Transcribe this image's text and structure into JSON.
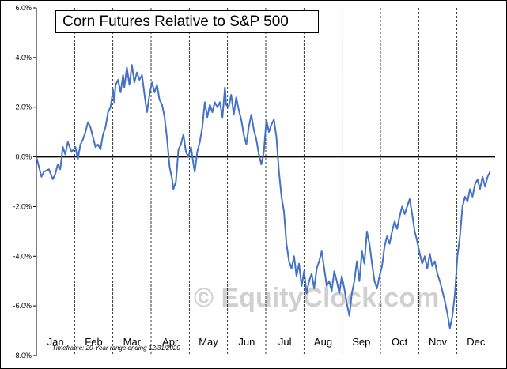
{
  "chart_data": {
    "type": "line",
    "title": "Corn Futures Relative to S&P 500",
    "footnote": "Timeframe:  20-Year range ending 12/31/2020",
    "watermark": "© EquityClock.com",
    "y_unit": "%",
    "ylim": [
      -8,
      6
    ],
    "y_ticks": [
      "6.0%",
      "4.0%",
      "2.0%",
      "0.0%",
      "-2.0%",
      "-4.0%",
      "-6.0%",
      "-8.0%"
    ],
    "y_tick_values": [
      6,
      4,
      2,
      0,
      -2,
      -4,
      -6,
      -8
    ],
    "months": [
      "Jan",
      "Feb",
      "Mar",
      "Apr",
      "May",
      "Jun",
      "Jul",
      "Aug",
      "Sep",
      "Oct",
      "Nov",
      "Dec"
    ],
    "grid": "vertical dashed month separators",
    "line_color": "#4472c4",
    "series": [
      {
        "values": [
          [
            0,
            0
          ],
          [
            4,
            -0.8
          ],
          [
            6,
            -0.6
          ],
          [
            10,
            -0.5
          ],
          [
            13,
            -0.9
          ],
          [
            15,
            -0.7
          ],
          [
            17,
            -0.3
          ],
          [
            19,
            -0.5
          ],
          [
            21,
            0.4
          ],
          [
            23,
            0.1
          ],
          [
            25,
            0.6
          ],
          [
            28,
            0.2
          ],
          [
            31,
            0.4
          ],
          [
            33,
            -0.1
          ],
          [
            35,
            0.5
          ],
          [
            37,
            0.7
          ],
          [
            39,
            1.0
          ],
          [
            41,
            1.4
          ],
          [
            43,
            1.2
          ],
          [
            45,
            0.8
          ],
          [
            47,
            0.4
          ],
          [
            49,
            0.5
          ],
          [
            51,
            0.3
          ],
          [
            53,
            0.9
          ],
          [
            55,
            1.2
          ],
          [
            57,
            1.8
          ],
          [
            59,
            2.0
          ],
          [
            61,
            2.7
          ],
          [
            62,
            2.2
          ],
          [
            63,
            2.9
          ],
          [
            65,
            3.1
          ],
          [
            67,
            2.6
          ],
          [
            69,
            3.3
          ],
          [
            70,
            2.8
          ],
          [
            72,
            3.6
          ],
          [
            74,
            2.9
          ],
          [
            76,
            3.7
          ],
          [
            78,
            3.0
          ],
          [
            80,
            3.4
          ],
          [
            82,
            3.1
          ],
          [
            84,
            3.3
          ],
          [
            86,
            2.5
          ],
          [
            88,
            1.8
          ],
          [
            90,
            2.5
          ],
          [
            92,
            3.0
          ],
          [
            94,
            2.6
          ],
          [
            96,
            2.9
          ],
          [
            98,
            2.3
          ],
          [
            100,
            2.1
          ],
          [
            102,
            1.6
          ],
          [
            104,
            0.7
          ],
          [
            106,
            -0.4
          ],
          [
            108,
            -0.9
          ],
          [
            109,
            -1.3
          ],
          [
            111,
            -1.0
          ],
          [
            113,
            0.3
          ],
          [
            115,
            0.5
          ],
          [
            117,
            0.9
          ],
          [
            119,
            0.2
          ],
          [
            121,
            0.0
          ],
          [
            123,
            0.4
          ],
          [
            125,
            -0.3
          ],
          [
            126,
            -0.6
          ],
          [
            128,
            0.2
          ],
          [
            130,
            0.6
          ],
          [
            132,
            1.2
          ],
          [
            134,
            2.2
          ],
          [
            136,
            1.6
          ],
          [
            138,
            2.1
          ],
          [
            140,
            1.8
          ],
          [
            142,
            2.2
          ],
          [
            144,
            2.0
          ],
          [
            146,
            2.2
          ],
          [
            148,
            1.6
          ],
          [
            150,
            2.8
          ],
          [
            151,
            2.1
          ],
          [
            153,
            2.0
          ],
          [
            155,
            2.5
          ],
          [
            157,
            1.7
          ],
          [
            159,
            2.4
          ],
          [
            161,
            1.9
          ],
          [
            163,
            1.5
          ],
          [
            165,
            0.9
          ],
          [
            167,
            0.5
          ],
          [
            169,
            1.2
          ],
          [
            171,
            1.7
          ],
          [
            173,
            1.1
          ],
          [
            175,
            0.7
          ],
          [
            177,
            0.1
          ],
          [
            179,
            -0.3
          ],
          [
            181,
            0.2
          ],
          [
            183,
            1.5
          ],
          [
            185,
            1.0
          ],
          [
            187,
            1.3
          ],
          [
            189,
            1.5
          ],
          [
            191,
            0.8
          ],
          [
            193,
            -0.6
          ],
          [
            195,
            -1.6
          ],
          [
            197,
            -2.2
          ],
          [
            199,
            -3.5
          ],
          [
            201,
            -4.2
          ],
          [
            203,
            -4.5
          ],
          [
            205,
            -4.0
          ],
          [
            207,
            -4.8
          ],
          [
            209,
            -4.3
          ],
          [
            211,
            -5.2
          ],
          [
            213,
            -4.6
          ],
          [
            215,
            -5.5
          ],
          [
            217,
            -5.0
          ],
          [
            219,
            -4.7
          ],
          [
            221,
            -5.3
          ],
          [
            223,
            -4.5
          ],
          [
            225,
            -4.2
          ],
          [
            227,
            -3.8
          ],
          [
            229,
            -4.5
          ],
          [
            231,
            -5.2
          ],
          [
            233,
            -5.0
          ],
          [
            235,
            -5.4
          ],
          [
            237,
            -4.6
          ],
          [
            239,
            -5.0
          ],
          [
            241,
            -5.5
          ],
          [
            243,
            -4.8
          ],
          [
            245,
            -5.3
          ],
          [
            247,
            -5.9
          ],
          [
            249,
            -6.4
          ],
          [
            251,
            -5.5
          ],
          [
            253,
            -5.0
          ],
          [
            255,
            -4.2
          ],
          [
            257,
            -5.0
          ],
          [
            259,
            -3.8
          ],
          [
            261,
            -4.3
          ],
          [
            263,
            -3.0
          ],
          [
            265,
            -3.5
          ],
          [
            267,
            -4.3
          ],
          [
            269,
            -5.0
          ],
          [
            271,
            -5.3
          ],
          [
            273,
            -4.8
          ],
          [
            275,
            -4.4
          ],
          [
            277,
            -3.6
          ],
          [
            279,
            -3.2
          ],
          [
            281,
            -3.5
          ],
          [
            283,
            -3.0
          ],
          [
            285,
            -2.6
          ],
          [
            287,
            -2.9
          ],
          [
            289,
            -2.4
          ],
          [
            291,
            -2.0
          ],
          [
            293,
            -2.3
          ],
          [
            295,
            -2.0
          ],
          [
            297,
            -1.7
          ],
          [
            299,
            -2.3
          ],
          [
            301,
            -3.0
          ],
          [
            303,
            -3.4
          ],
          [
            305,
            -3.9
          ],
          [
            307,
            -4.3
          ],
          [
            309,
            -4.0
          ],
          [
            311,
            -4.5
          ],
          [
            313,
            -3.9
          ],
          [
            315,
            -4.4
          ],
          [
            317,
            -4.2
          ],
          [
            319,
            -4.7
          ],
          [
            321,
            -5.0
          ],
          [
            323,
            -5.4
          ],
          [
            325,
            -5.8
          ],
          [
            327,
            -6.3
          ],
          [
            329,
            -6.9
          ],
          [
            331,
            -6.4
          ],
          [
            333,
            -5.5
          ],
          [
            335,
            -4.0
          ],
          [
            337,
            -3.2
          ],
          [
            339,
            -2.0
          ],
          [
            341,
            -1.6
          ],
          [
            343,
            -1.8
          ],
          [
            345,
            -1.3
          ],
          [
            347,
            -1.6
          ],
          [
            349,
            -1.1
          ],
          [
            351,
            -0.9
          ],
          [
            353,
            -1.3
          ],
          [
            355,
            -0.8
          ],
          [
            357,
            -1.2
          ],
          [
            359,
            -0.8
          ],
          [
            361,
            -0.6
          ]
        ]
      }
    ]
  }
}
